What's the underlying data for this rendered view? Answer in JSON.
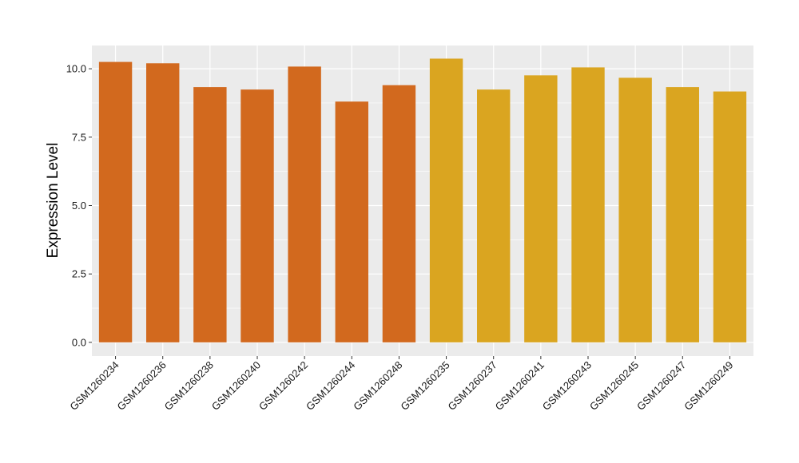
{
  "chart_data": {
    "type": "bar",
    "title": "",
    "xlabel": "",
    "ylabel": "Expression Level",
    "ylim": [
      -0.5,
      10.85
    ],
    "yticks": [
      0.0,
      2.5,
      5.0,
      7.5,
      10.0
    ],
    "ytick_labels": [
      "0.0",
      "2.5",
      "5.0",
      "7.5",
      "10.0"
    ],
    "grid": true,
    "legend": "none",
    "categories": [
      "GSM1260234",
      "GSM1260236",
      "GSM1260238",
      "GSM1260240",
      "GSM1260242",
      "GSM1260244",
      "GSM1260248",
      "GSM1260235",
      "GSM1260237",
      "GSM1260241",
      "GSM1260243",
      "GSM1260245",
      "GSM1260247",
      "GSM1260249"
    ],
    "values": [
      10.25,
      10.2,
      9.33,
      9.24,
      10.08,
      8.8,
      9.4,
      10.37,
      9.24,
      9.76,
      10.05,
      9.67,
      9.33,
      9.17
    ],
    "group_index": [
      0,
      0,
      0,
      0,
      0,
      0,
      0,
      1,
      1,
      1,
      1,
      1,
      1,
      1
    ],
    "group_colors": [
      "#D2691E",
      "#DAA520"
    ],
    "panel_color": "#EBEBEB",
    "grid_color": "#FFFFFF",
    "tick_color": "#333333"
  }
}
